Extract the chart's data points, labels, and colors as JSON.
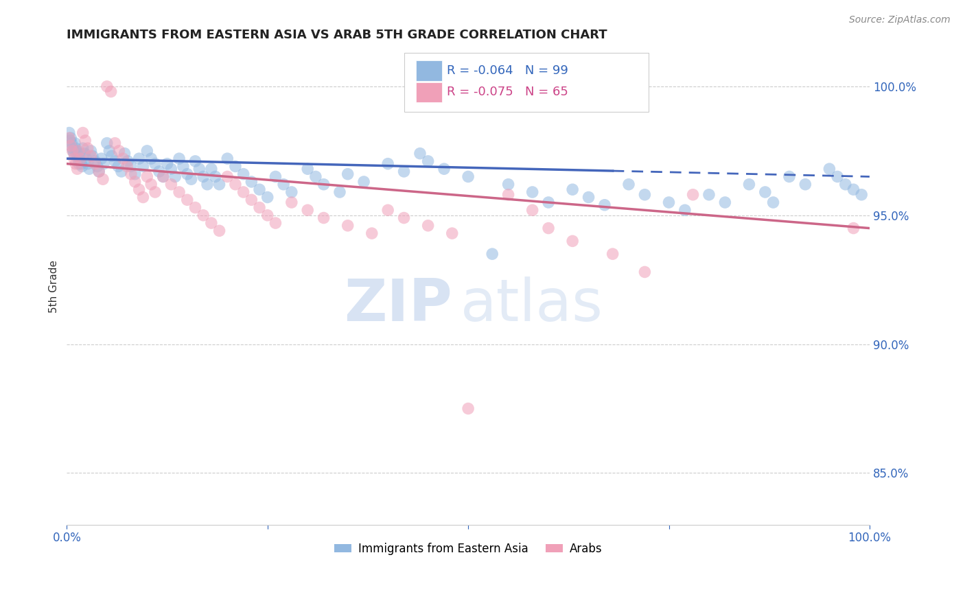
{
  "title": "IMMIGRANTS FROM EASTERN ASIA VS ARAB 5TH GRADE CORRELATION CHART",
  "source": "Source: ZipAtlas.com",
  "ylabel": "5th Grade",
  "xmin": 0.0,
  "xmax": 100.0,
  "ymin": 83.0,
  "ymax": 101.5,
  "ytick_labels": [
    "85.0%",
    "90.0%",
    "95.0%",
    "100.0%"
  ],
  "ytick_values": [
    85.0,
    90.0,
    95.0,
    100.0
  ],
  "blue_R": -0.064,
  "blue_N": 99,
  "pink_R": -0.075,
  "pink_N": 65,
  "blue_color": "#92b8e0",
  "pink_color": "#f0a0b8",
  "blue_line_color": "#4466bb",
  "pink_line_color": "#cc6688",
  "blue_scatter": [
    [
      0.3,
      98.2
    ],
    [
      0.4,
      97.9
    ],
    [
      0.5,
      98.0
    ],
    [
      0.6,
      97.8
    ],
    [
      0.7,
      97.6
    ],
    [
      0.8,
      97.5
    ],
    [
      0.9,
      97.4
    ],
    [
      1.0,
      97.8
    ],
    [
      1.1,
      97.6
    ],
    [
      1.2,
      97.5
    ],
    [
      1.3,
      97.3
    ],
    [
      1.4,
      97.2
    ],
    [
      1.5,
      97.0
    ],
    [
      1.6,
      97.4
    ],
    [
      1.7,
      97.2
    ],
    [
      1.8,
      97.0
    ],
    [
      1.9,
      96.9
    ],
    [
      2.0,
      97.6
    ],
    [
      2.2,
      97.4
    ],
    [
      2.4,
      97.2
    ],
    [
      2.6,
      97.0
    ],
    [
      2.8,
      96.8
    ],
    [
      3.0,
      97.5
    ],
    [
      3.2,
      97.3
    ],
    [
      3.5,
      97.1
    ],
    [
      3.8,
      96.9
    ],
    [
      4.0,
      96.7
    ],
    [
      4.3,
      97.2
    ],
    [
      4.6,
      97.0
    ],
    [
      5.0,
      97.8
    ],
    [
      5.3,
      97.5
    ],
    [
      5.6,
      97.3
    ],
    [
      6.0,
      97.1
    ],
    [
      6.4,
      96.9
    ],
    [
      6.8,
      96.7
    ],
    [
      7.2,
      97.4
    ],
    [
      7.6,
      97.1
    ],
    [
      8.0,
      96.9
    ],
    [
      8.5,
      96.6
    ],
    [
      9.0,
      97.2
    ],
    [
      9.5,
      96.9
    ],
    [
      10.0,
      97.5
    ],
    [
      10.5,
      97.2
    ],
    [
      11.0,
      97.0
    ],
    [
      11.5,
      96.7
    ],
    [
      12.0,
      96.5
    ],
    [
      12.5,
      97.0
    ],
    [
      13.0,
      96.8
    ],
    [
      13.5,
      96.5
    ],
    [
      14.0,
      97.2
    ],
    [
      14.5,
      96.9
    ],
    [
      15.0,
      96.6
    ],
    [
      15.5,
      96.4
    ],
    [
      16.0,
      97.1
    ],
    [
      16.5,
      96.8
    ],
    [
      17.0,
      96.5
    ],
    [
      17.5,
      96.2
    ],
    [
      18.0,
      96.8
    ],
    [
      18.5,
      96.5
    ],
    [
      19.0,
      96.2
    ],
    [
      20.0,
      97.2
    ],
    [
      21.0,
      96.9
    ],
    [
      22.0,
      96.6
    ],
    [
      23.0,
      96.3
    ],
    [
      24.0,
      96.0
    ],
    [
      25.0,
      95.7
    ],
    [
      26.0,
      96.5
    ],
    [
      27.0,
      96.2
    ],
    [
      28.0,
      95.9
    ],
    [
      30.0,
      96.8
    ],
    [
      31.0,
      96.5
    ],
    [
      32.0,
      96.2
    ],
    [
      34.0,
      95.9
    ],
    [
      35.0,
      96.6
    ],
    [
      37.0,
      96.3
    ],
    [
      40.0,
      97.0
    ],
    [
      42.0,
      96.7
    ],
    [
      44.0,
      97.4
    ],
    [
      45.0,
      97.1
    ],
    [
      47.0,
      96.8
    ],
    [
      50.0,
      96.5
    ],
    [
      53.0,
      93.5
    ],
    [
      55.0,
      96.2
    ],
    [
      58.0,
      95.9
    ],
    [
      60.0,
      95.5
    ],
    [
      63.0,
      96.0
    ],
    [
      65.0,
      95.7
    ],
    [
      67.0,
      95.4
    ],
    [
      70.0,
      96.2
    ],
    [
      72.0,
      95.8
    ],
    [
      75.0,
      95.5
    ],
    [
      77.0,
      95.2
    ],
    [
      80.0,
      95.8
    ],
    [
      82.0,
      95.5
    ],
    [
      85.0,
      96.2
    ],
    [
      87.0,
      95.9
    ],
    [
      88.0,
      95.5
    ],
    [
      90.0,
      96.5
    ],
    [
      92.0,
      96.2
    ],
    [
      95.0,
      96.8
    ],
    [
      96.0,
      96.5
    ],
    [
      97.0,
      96.2
    ],
    [
      98.0,
      96.0
    ],
    [
      99.0,
      95.8
    ]
  ],
  "pink_scatter": [
    [
      0.3,
      98.0
    ],
    [
      0.5,
      97.7
    ],
    [
      0.7,
      97.5
    ],
    [
      0.9,
      97.2
    ],
    [
      1.1,
      97.0
    ],
    [
      1.3,
      96.8
    ],
    [
      1.5,
      97.5
    ],
    [
      1.7,
      97.2
    ],
    [
      2.0,
      98.2
    ],
    [
      2.3,
      97.9
    ],
    [
      2.6,
      97.6
    ],
    [
      3.0,
      97.3
    ],
    [
      3.5,
      97.0
    ],
    [
      4.0,
      96.7
    ],
    [
      4.5,
      96.4
    ],
    [
      5.0,
      100.0
    ],
    [
      5.5,
      99.8
    ],
    [
      6.0,
      97.8
    ],
    [
      6.5,
      97.5
    ],
    [
      7.0,
      97.2
    ],
    [
      7.5,
      96.9
    ],
    [
      8.0,
      96.6
    ],
    [
      8.5,
      96.3
    ],
    [
      9.0,
      96.0
    ],
    [
      9.5,
      95.7
    ],
    [
      10.0,
      96.5
    ],
    [
      10.5,
      96.2
    ],
    [
      11.0,
      95.9
    ],
    [
      12.0,
      96.5
    ],
    [
      13.0,
      96.2
    ],
    [
      14.0,
      95.9
    ],
    [
      15.0,
      95.6
    ],
    [
      16.0,
      95.3
    ],
    [
      17.0,
      95.0
    ],
    [
      18.0,
      94.7
    ],
    [
      19.0,
      94.4
    ],
    [
      20.0,
      96.5
    ],
    [
      21.0,
      96.2
    ],
    [
      22.0,
      95.9
    ],
    [
      23.0,
      95.6
    ],
    [
      24.0,
      95.3
    ],
    [
      25.0,
      95.0
    ],
    [
      26.0,
      94.7
    ],
    [
      28.0,
      95.5
    ],
    [
      30.0,
      95.2
    ],
    [
      32.0,
      94.9
    ],
    [
      35.0,
      94.6
    ],
    [
      38.0,
      94.3
    ],
    [
      40.0,
      95.2
    ],
    [
      42.0,
      94.9
    ],
    [
      45.0,
      94.6
    ],
    [
      48.0,
      94.3
    ],
    [
      50.0,
      87.5
    ],
    [
      55.0,
      95.8
    ],
    [
      58.0,
      95.2
    ],
    [
      60.0,
      94.5
    ],
    [
      63.0,
      94.0
    ],
    [
      68.0,
      93.5
    ],
    [
      72.0,
      92.8
    ],
    [
      78.0,
      95.8
    ],
    [
      98.0,
      94.5
    ]
  ],
  "blue_trend_x": [
    0.0,
    100.0
  ],
  "blue_trend_y": [
    97.2,
    96.5
  ],
  "blue_solid_end_x": 68.0,
  "pink_trend_x": [
    0.0,
    100.0
  ],
  "pink_trend_y": [
    97.0,
    94.5
  ],
  "watermark_zip": "ZIP",
  "watermark_atlas": "atlas",
  "legend_blue_label": "Immigrants from Eastern Asia",
  "legend_pink_label": "Arabs"
}
